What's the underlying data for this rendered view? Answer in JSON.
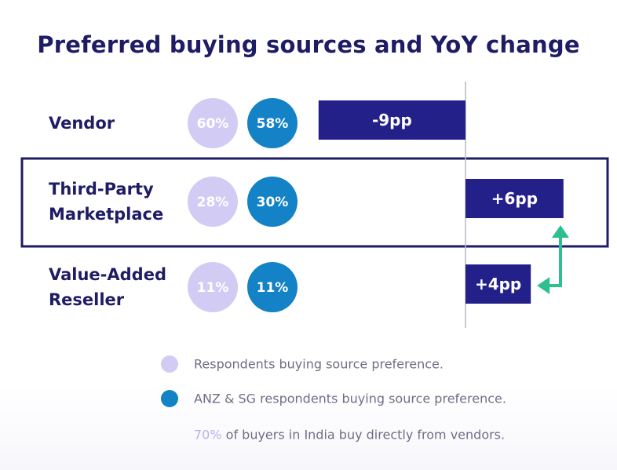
{
  "title": "Preferred buying sources and YoY change",
  "colors": {
    "title": "#1f1c66",
    "respondents_bubble": "#d2ccf5",
    "anz_sg_bubble": "#1382c7",
    "bar": "#24208a",
    "highlight_border": "#1f1c66",
    "arrow": "#2ebf8e",
    "text": "#6f6d86"
  },
  "chart_data": {
    "type": "bar",
    "title": "Preferred buying sources and YoY change",
    "categories": [
      [
        "Vendor"
      ],
      [
        "Third-Party",
        "Marketplace"
      ],
      [
        "Value-Added",
        "Reseller"
      ]
    ],
    "series": [
      {
        "name": "Respondents buying source preference.",
        "values": [
          60,
          28,
          11
        ],
        "labels": [
          "60%",
          "28%",
          "11%"
        ]
      },
      {
        "name": "ANZ & SG respondents buying source preference.",
        "values": [
          58,
          30,
          11
        ],
        "labels": [
          "58%",
          "30%",
          "11%"
        ]
      },
      {
        "values": [
          -9,
          6,
          4
        ],
        "labels": [
          "-9pp",
          "+6pp",
          "+4pp"
        ]
      }
    ],
    "highlighted_category_index": 1,
    "arrow": {
      "from_category_index": 2,
      "to_category_index": 1
    }
  },
  "legend": [
    {
      "text": "Respondents buying source preference.",
      "color": "#d2ccf5"
    },
    {
      "text": "ANZ & SG respondents buying source preference.",
      "color": "#1382c7"
    }
  ],
  "note": {
    "highlight": "70%",
    "rest": " of buyers in India buy directly from vendors."
  }
}
